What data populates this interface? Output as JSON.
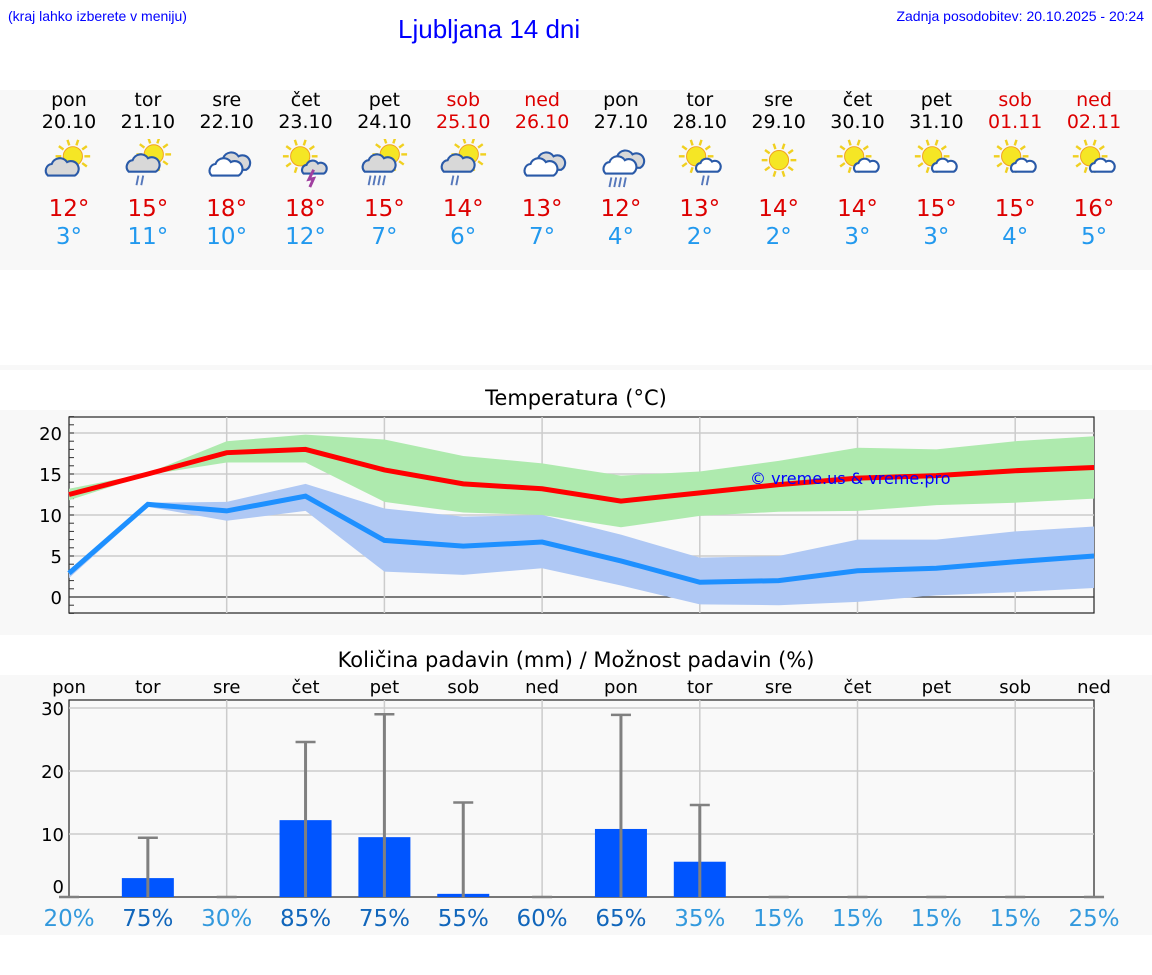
{
  "header": {
    "note": "(kraj lahko izberete v meniju)",
    "title": "Ljubljana 14 dni",
    "updated": "Zadnja posodobitev: 20.10.2025 - 20:24"
  },
  "colors": {
    "weekday": "#000000",
    "weekend": "#dd0000",
    "max": "#ff0000",
    "min": "#1e90ff",
    "max_band": "#aeeaae",
    "min_band": "#afc8f4",
    "bar": "#0055ff",
    "errorbar": "#808080",
    "pct_low": "#3399dd",
    "pct_high": "#1166bb"
  },
  "days": [
    {
      "name": "pon",
      "date": "20.10",
      "icon": "sun-cloud",
      "max": "12°",
      "min": "3°",
      "weekend": false
    },
    {
      "name": "tor",
      "date": "21.10",
      "icon": "sun-cloud-rain",
      "max": "15°",
      "min": "11°",
      "weekend": false
    },
    {
      "name": "sre",
      "date": "22.10",
      "icon": "clouds",
      "max": "18°",
      "min": "10°",
      "weekend": false
    },
    {
      "name": "čet",
      "date": "23.10",
      "icon": "sun-thunderstorm",
      "max": "18°",
      "min": "12°",
      "weekend": false
    },
    {
      "name": "pet",
      "date": "24.10",
      "icon": "sun-cloud-heavy-rain",
      "max": "15°",
      "min": "7°",
      "weekend": false
    },
    {
      "name": "sob",
      "date": "25.10",
      "icon": "sun-cloud-rain",
      "max": "14°",
      "min": "6°",
      "weekend": true
    },
    {
      "name": "ned",
      "date": "26.10",
      "icon": "clouds",
      "max": "13°",
      "min": "7°",
      "weekend": true
    },
    {
      "name": "pon",
      "date": "27.10",
      "icon": "clouds-heavy-rain",
      "max": "12°",
      "min": "4°",
      "weekend": false
    },
    {
      "name": "tor",
      "date": "28.10",
      "icon": "sun-small-cloud-rain",
      "max": "13°",
      "min": "2°",
      "weekend": false
    },
    {
      "name": "sre",
      "date": "29.10",
      "icon": "sun",
      "max": "14°",
      "min": "2°",
      "weekend": false
    },
    {
      "name": "čet",
      "date": "30.10",
      "icon": "sun-small-cloud",
      "max": "14°",
      "min": "3°",
      "weekend": false
    },
    {
      "name": "pet",
      "date": "31.10",
      "icon": "sun-small-cloud",
      "max": "15°",
      "min": "3°",
      "weekend": false
    },
    {
      "name": "sob",
      "date": "01.11",
      "icon": "sun-small-cloud",
      "max": "15°",
      "min": "4°",
      "weekend": true
    },
    {
      "name": "ned",
      "date": "02.11",
      "icon": "sun-small-cloud",
      "max": "16°",
      "min": "5°",
      "weekend": true
    }
  ],
  "chart_data": [
    {
      "type": "line",
      "title": "Temperatura (°C)",
      "ylim": [
        -2,
        22
      ],
      "yticks": [
        0,
        5,
        10,
        15,
        20
      ],
      "grid": true,
      "watermark": "© vreme.us & vreme.pro",
      "x": [
        "20.10",
        "21.10",
        "22.10",
        "23.10",
        "24.10",
        "25.10",
        "26.10",
        "27.10",
        "28.10",
        "29.10",
        "30.10",
        "31.10",
        "01.11",
        "02.11"
      ],
      "series": [
        {
          "role": "max",
          "values": [
            12.5,
            15,
            17.6,
            18,
            15.5,
            13.8,
            13.2,
            11.7,
            12.7,
            13.7,
            14.5,
            14.8,
            15.4,
            15.8
          ],
          "band_high": [
            13.2,
            15.1,
            19,
            19.8,
            19.2,
            17.2,
            16.3,
            14.8,
            15.3,
            16.6,
            18.2,
            18,
            19,
            19.6
          ],
          "band_low": [
            11.8,
            14.9,
            16.4,
            16.4,
            11.6,
            10.3,
            10,
            8.5,
            9.9,
            10.4,
            10.5,
            11.2,
            11.5,
            12
          ]
        },
        {
          "role": "min",
          "values": [
            2.9,
            11.3,
            10.5,
            12.3,
            6.9,
            6.2,
            6.7,
            4.4,
            1.8,
            2,
            3.2,
            3.5,
            4.3,
            5
          ],
          "band_high": [
            3.2,
            11.5,
            11.6,
            13.8,
            10.8,
            9.8,
            10,
            7.6,
            4.8,
            5,
            7,
            7,
            8,
            8.6
          ],
          "band_low": [
            2.3,
            11,
            9.3,
            10.5,
            3.1,
            2.7,
            3.5,
            1.4,
            -0.9,
            -1,
            -0.6,
            0.2,
            0.6,
            1.1
          ]
        }
      ]
    },
    {
      "type": "bar",
      "title": "Količina padavin (mm) / Možnost padavin (%)",
      "ylim": [
        0,
        31
      ],
      "yticks": [
        0,
        10,
        20,
        30
      ],
      "grid": true,
      "categories": [
        "pon",
        "tor",
        "sre",
        "čet",
        "pet",
        "sob",
        "ned",
        "pon",
        "tor",
        "sre",
        "čet",
        "pet",
        "sob",
        "ned"
      ],
      "values": [
        0,
        3,
        0,
        12.2,
        9.5,
        0.5,
        0,
        10.8,
        5.6,
        0,
        0,
        0,
        0,
        0
      ],
      "error_high": [
        0,
        9.4,
        0,
        24.6,
        29,
        15,
        0,
        28.9,
        14.6,
        0,
        0,
        0,
        0,
        0
      ],
      "probability": [
        "20%",
        "75%",
        "30%",
        "85%",
        "75%",
        "55%",
        "60%",
        "65%",
        "35%",
        "15%",
        "15%",
        "15%",
        "15%",
        "25%"
      ]
    }
  ]
}
